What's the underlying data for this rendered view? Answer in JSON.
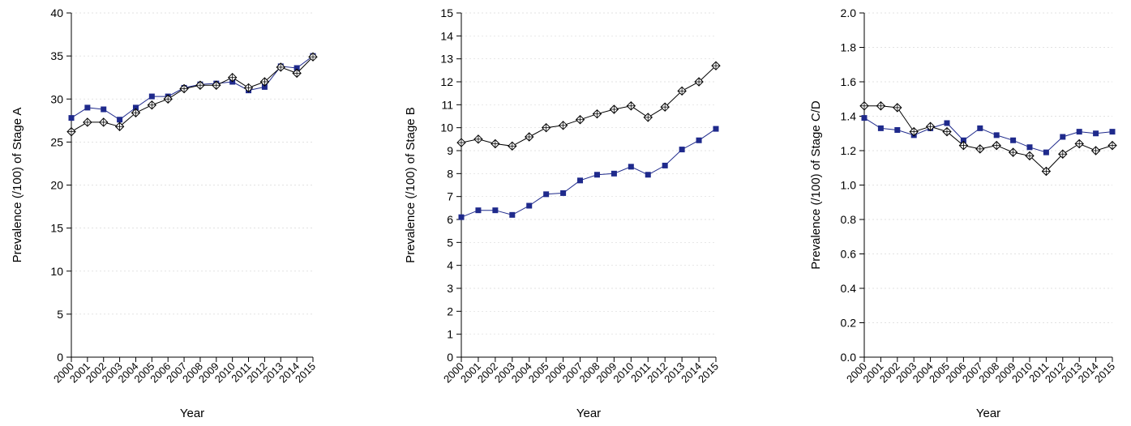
{
  "chart_data": [
    {
      "type": "line",
      "xlabel": "Year",
      "ylabel": "Prevalence (/100) of Stage A",
      "ylim": [
        0,
        40
      ],
      "yticks": [
        "0",
        "5",
        "10",
        "15",
        "20",
        "25",
        "30",
        "35",
        "40"
      ],
      "grid": true,
      "x": [
        "2000",
        "2001",
        "2002",
        "2003",
        "2004",
        "2005",
        "2006",
        "2007",
        "2008",
        "2009",
        "2010",
        "2011",
        "2012",
        "2013",
        "2014",
        "2015"
      ],
      "series": [
        {
          "marker": "square",
          "color": "#1f2a8c",
          "values": [
            27.8,
            29.0,
            28.8,
            27.6,
            29.0,
            30.3,
            30.3,
            31.3,
            31.7,
            31.8,
            32.0,
            31.0,
            31.4,
            33.8,
            33.6,
            35.0
          ]
        },
        {
          "marker": "diamond",
          "color": "#000000",
          "values": [
            26.2,
            27.3,
            27.3,
            26.8,
            28.4,
            29.3,
            30.0,
            31.2,
            31.6,
            31.6,
            32.5,
            31.3,
            32.0,
            33.7,
            33.0,
            34.9
          ]
        }
      ]
    },
    {
      "type": "line",
      "xlabel": "Year",
      "ylabel": "Prevalence (/100) of Stage B",
      "ylim": [
        0,
        15
      ],
      "yticks": [
        "0",
        "1",
        "2",
        "3",
        "4",
        "5",
        "6",
        "7",
        "8",
        "9",
        "10",
        "11",
        "12",
        "13",
        "14",
        "15"
      ],
      "grid": true,
      "x": [
        "2000",
        "2001",
        "2002",
        "2003",
        "2004",
        "2005",
        "2006",
        "2007",
        "2008",
        "2009",
        "2010",
        "2011",
        "2012",
        "2013",
        "2014",
        "2015"
      ],
      "series": [
        {
          "marker": "square",
          "color": "#1f2a8c",
          "values": [
            6.1,
            6.4,
            6.4,
            6.2,
            6.6,
            7.1,
            7.15,
            7.7,
            7.95,
            8.0,
            8.3,
            7.95,
            8.35,
            9.05,
            9.45,
            9.95
          ]
        },
        {
          "marker": "diamond",
          "color": "#000000",
          "values": [
            9.35,
            9.5,
            9.3,
            9.2,
            9.6,
            10.0,
            10.1,
            10.35,
            10.6,
            10.8,
            10.95,
            10.45,
            10.9,
            11.6,
            12.0,
            12.7
          ]
        }
      ]
    },
    {
      "type": "line",
      "xlabel": "Year",
      "ylabel": "Prevalence (/100) of Stage C/D",
      "ylim": [
        0,
        2.0
      ],
      "yticks": [
        "0.0",
        "0.2",
        "0.4",
        "0.6",
        "0.8",
        "1.0",
        "1.2",
        "1.4",
        "1.6",
        "1.8",
        "2.0"
      ],
      "grid": true,
      "x": [
        "2000",
        "2001",
        "2002",
        "2003",
        "2004",
        "2005",
        "2006",
        "2007",
        "2008",
        "2009",
        "2010",
        "2011",
        "2012",
        "2013",
        "2014",
        "2015"
      ],
      "series": [
        {
          "marker": "square",
          "color": "#1f2a8c",
          "values": [
            1.39,
            1.33,
            1.32,
            1.29,
            1.33,
            1.36,
            1.26,
            1.33,
            1.29,
            1.26,
            1.22,
            1.19,
            1.28,
            1.31,
            1.3,
            1.31
          ]
        },
        {
          "marker": "diamond",
          "color": "#000000",
          "values": [
            1.46,
            1.46,
            1.45,
            1.31,
            1.34,
            1.31,
            1.23,
            1.21,
            1.23,
            1.19,
            1.17,
            1.08,
            1.18,
            1.24,
            1.2,
            1.23
          ]
        }
      ]
    }
  ]
}
